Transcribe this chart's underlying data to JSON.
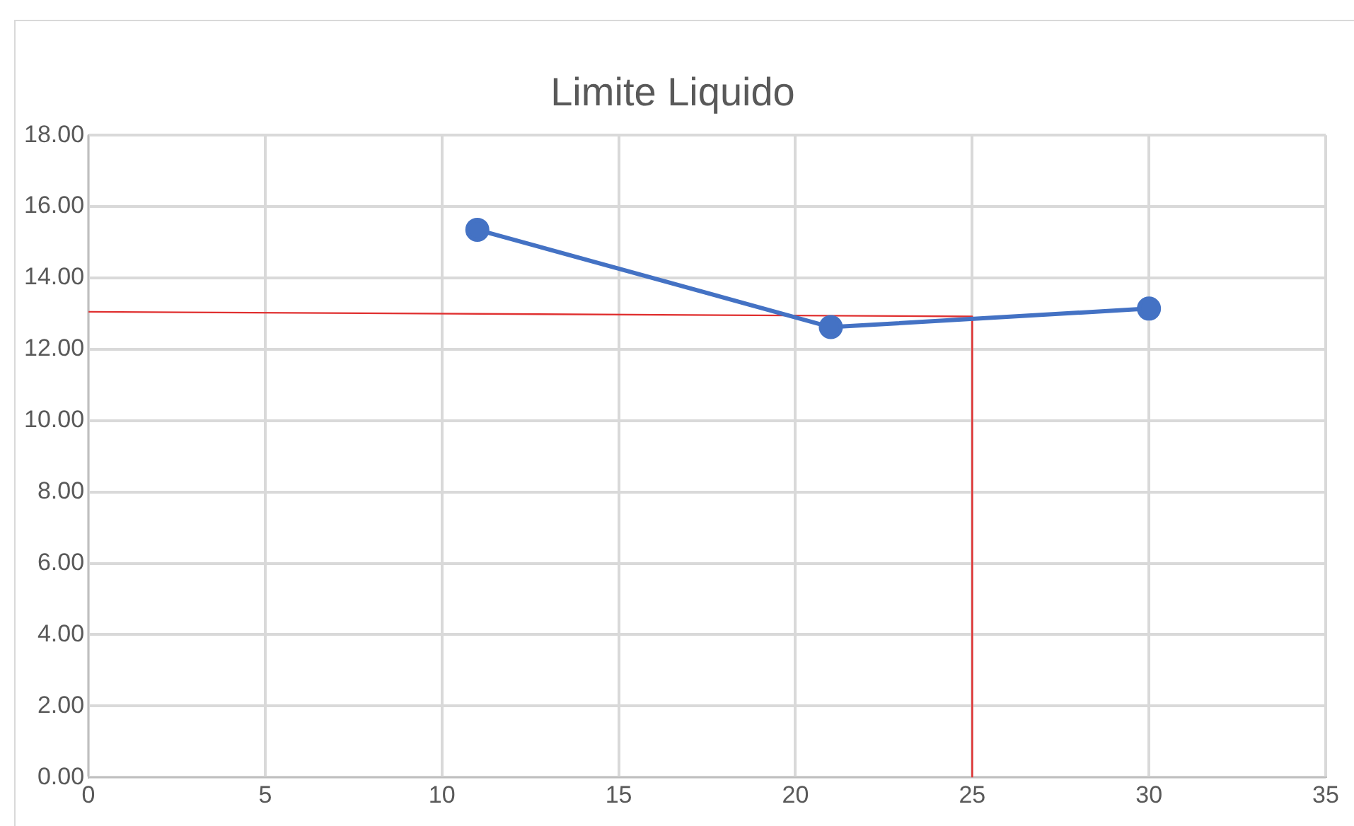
{
  "chart_data": {
    "type": "line",
    "title": "Limite Liquido",
    "series": [
      {
        "color": "#4472c4",
        "x": [
          11,
          21,
          30
        ],
        "values": [
          15.35,
          12.62,
          13.14
        ],
        "marker": "circle"
      },
      {
        "color": "#e03030",
        "x": [
          0,
          25,
          25
        ],
        "values": [
          13.05,
          12.92,
          0
        ],
        "marker": "none"
      }
    ],
    "xlim": [
      0,
      35
    ],
    "xticks": [
      0,
      5,
      10,
      15,
      20,
      25,
      30,
      35
    ],
    "ylim": [
      0,
      18
    ],
    "yticks": [
      {
        "value": 0,
        "label": "0.00"
      },
      {
        "value": 2,
        "label": "2.00"
      },
      {
        "value": 4,
        "label": "4.00"
      },
      {
        "value": 6,
        "label": "6.00"
      },
      {
        "value": 8,
        "label": "8.00"
      },
      {
        "value": 10,
        "label": "10.00"
      },
      {
        "value": 12,
        "label": "12.00"
      },
      {
        "value": 14,
        "label": "14.00"
      },
      {
        "value": 16,
        "label": "16.00"
      },
      {
        "value": 18,
        "label": "18.00"
      }
    ],
    "grid": true,
    "legend": false,
    "line_style": "solid"
  }
}
